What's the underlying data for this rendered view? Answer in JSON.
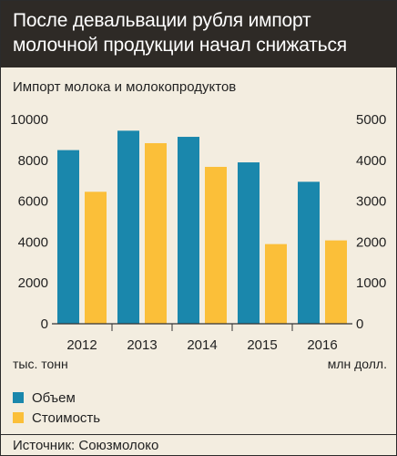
{
  "header": {
    "title_line1": "После девальвации рубля импорт",
    "title_line2": "молочной продукции начал снижаться"
  },
  "subtitle": "Импорт молока и молокопродуктов",
  "units": {
    "left": "тыс. тонн",
    "right": "млн долл."
  },
  "legend": [
    {
      "label": "Объем",
      "color": "#1a87ac"
    },
    {
      "label": "Стоимость",
      "color": "#fbbf39"
    }
  ],
  "source": "Источник: Союзмолоко",
  "chart_data": {
    "type": "bar",
    "categories": [
      "2012",
      "2013",
      "2014",
      "2015",
      "2016"
    ],
    "series": [
      {
        "name": "Объем",
        "axis": "left",
        "color": "#1a87ac",
        "values": [
          8500,
          9450,
          9150,
          7900,
          6950
        ]
      },
      {
        "name": "Стоимость",
        "axis": "right",
        "color": "#fbbf39",
        "values": [
          3230,
          4420,
          3840,
          1950,
          2040
        ]
      }
    ],
    "y_left": {
      "ylim": [
        0,
        10000
      ],
      "ticks": [
        "10000",
        "8000",
        "6000",
        "4000",
        "2000",
        "0"
      ],
      "label": "тыс. тонн"
    },
    "y_right": {
      "ylim": [
        0,
        5000
      ],
      "ticks": [
        "5000",
        "4000",
        "3000",
        "2000",
        "1000",
        "0"
      ],
      "label": "млн долл."
    },
    "grid": false,
    "legend_position": "bottom-left"
  }
}
